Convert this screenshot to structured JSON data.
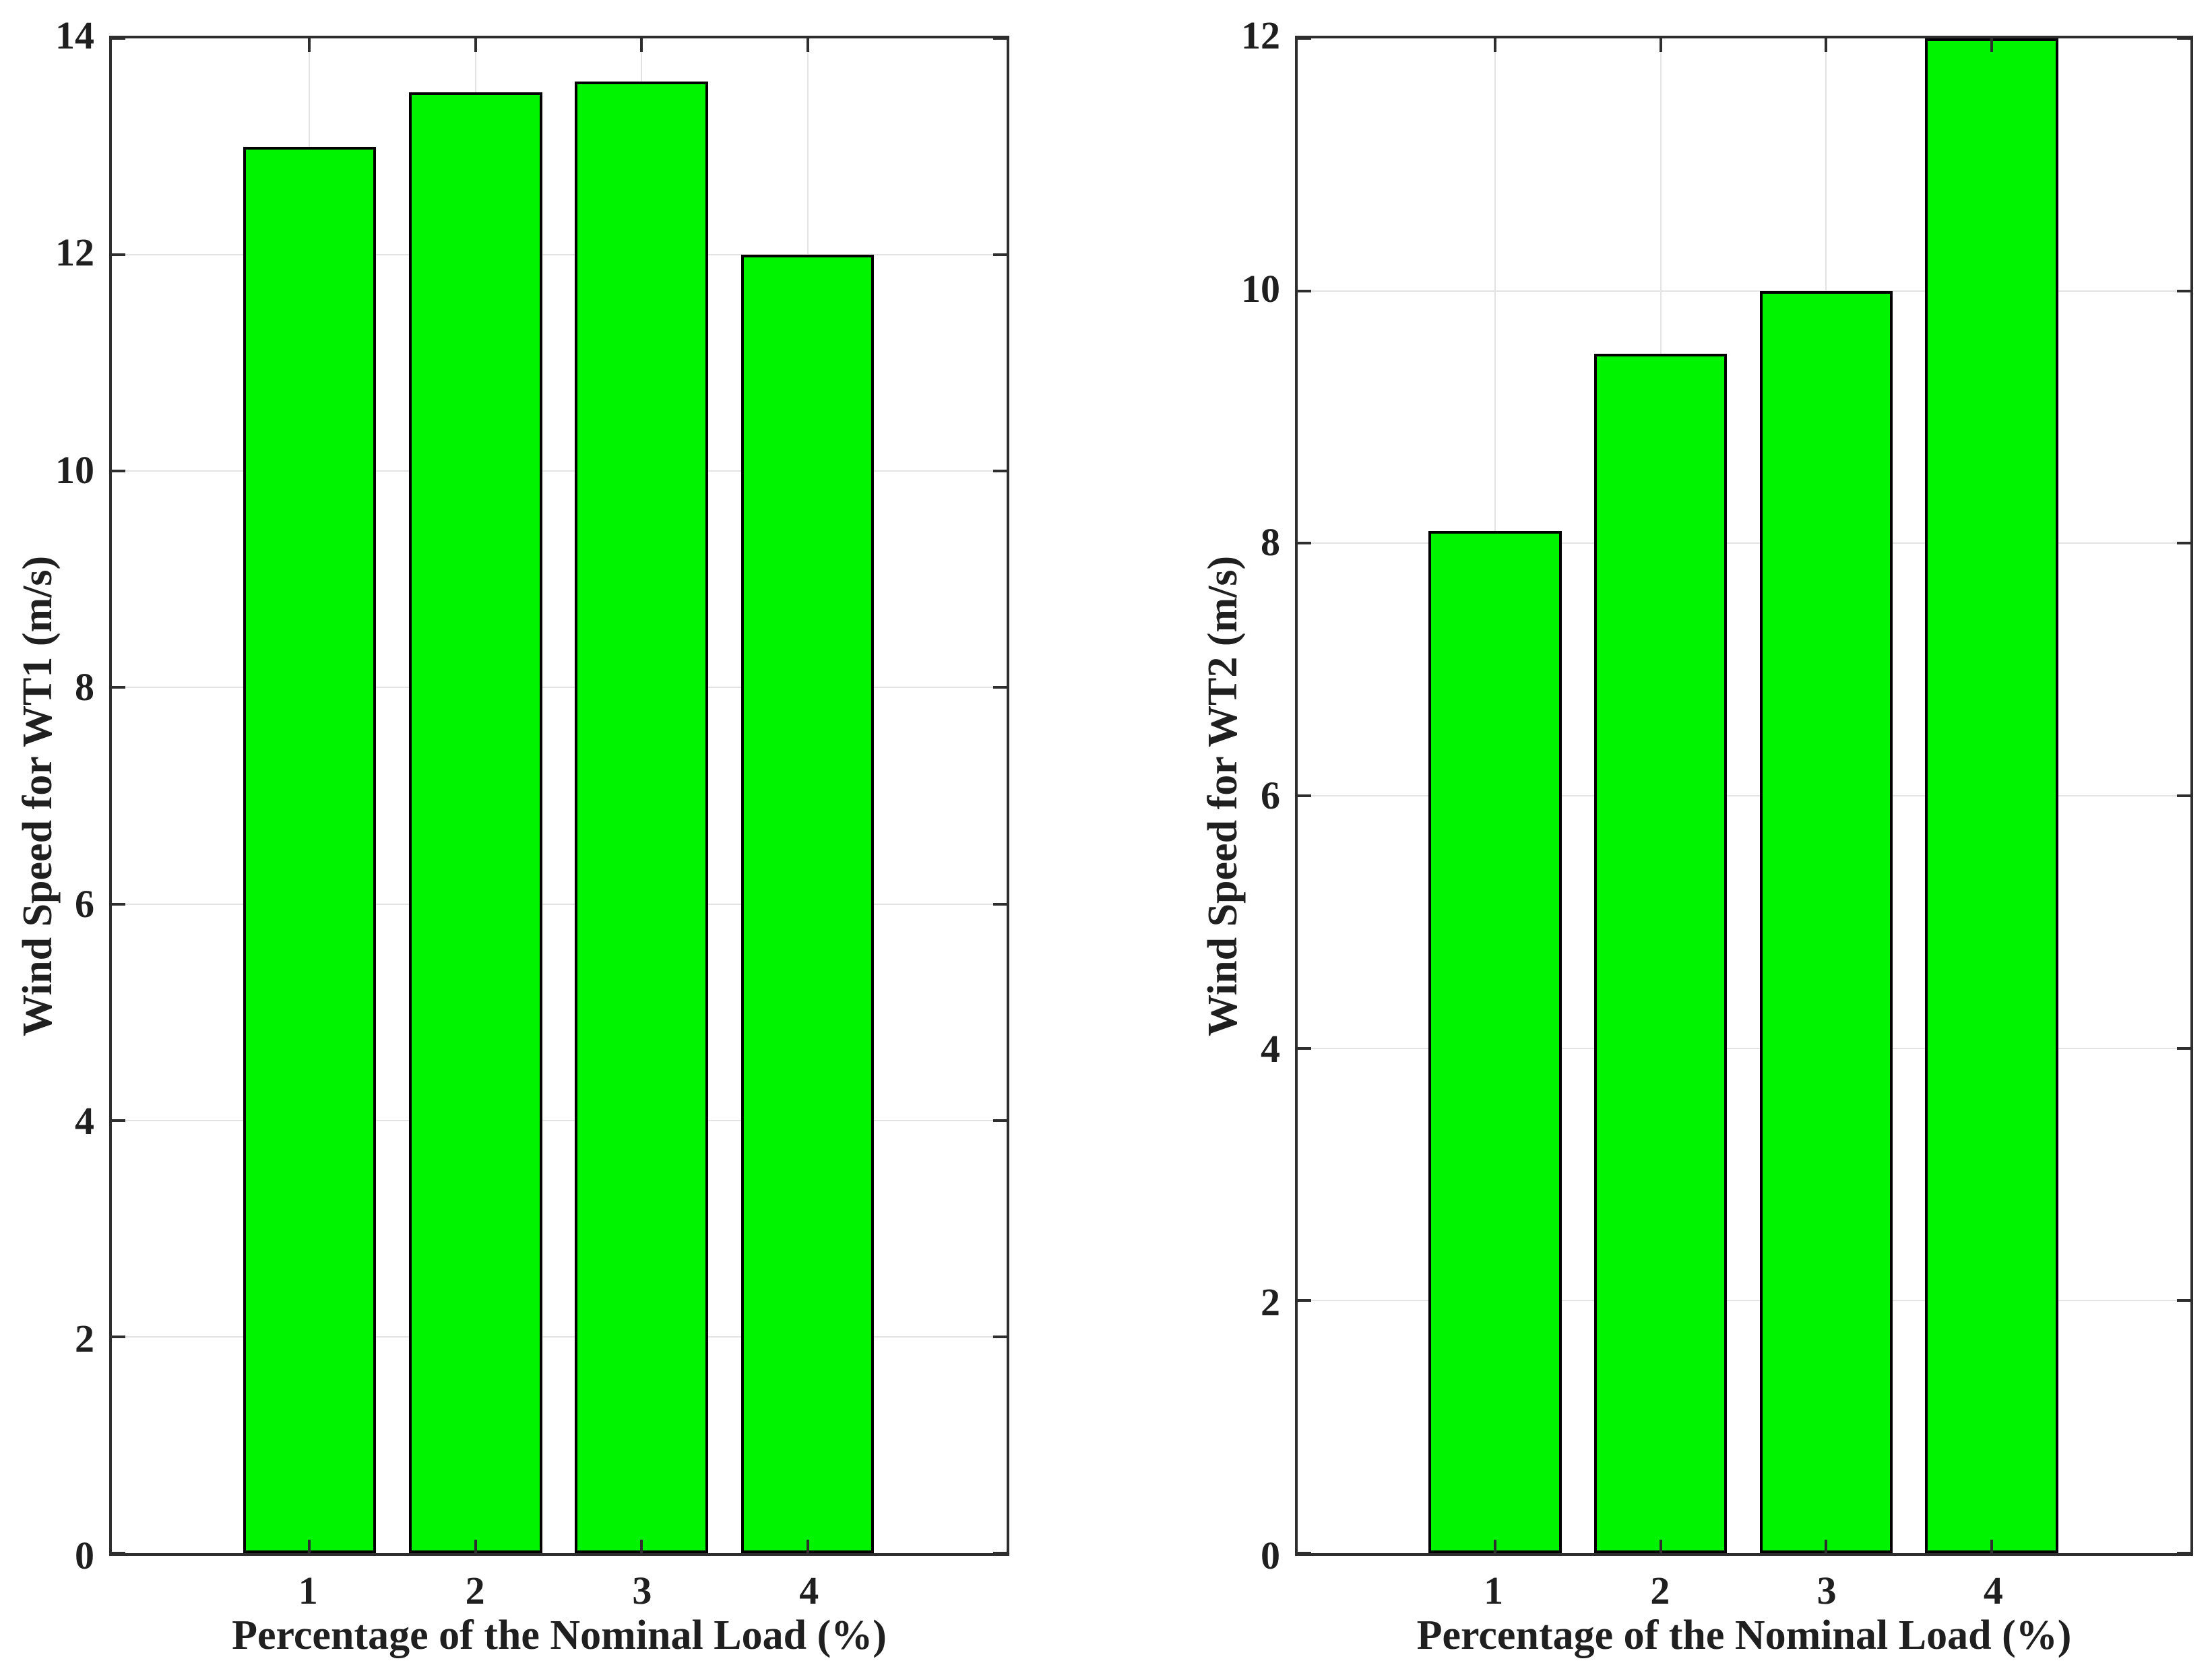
{
  "figure": {
    "background": "#ffffff",
    "text_color": "#1f1f1f",
    "axis_color": "#2e2e2e",
    "grid_color": "#e3e3e3"
  },
  "chart_data": [
    {
      "type": "bar",
      "title": "",
      "categories": [
        "1",
        "2",
        "3",
        "4"
      ],
      "values": [
        13,
        13.5,
        13.6,
        12
      ],
      "xlabel": "Percentage of the Nominal Load (%)",
      "ylabel": "Wind Speed for WT1 (m/s)",
      "ylim": [
        0,
        14
      ],
      "yticks": [
        0,
        2,
        4,
        6,
        8,
        10,
        12,
        14
      ],
      "grid": true,
      "legend": "none",
      "bar_color": "#00f400",
      "bar_edge_color": "#000000"
    },
    {
      "type": "bar",
      "title": "",
      "categories": [
        "1",
        "2",
        "3",
        "4"
      ],
      "values": [
        8.1,
        9.5,
        10,
        12
      ],
      "xlabel": "Percentage of the Nominal Load (%)",
      "ylabel": "Wind Speed for WT2 (m/s)",
      "ylim": [
        0,
        12
      ],
      "yticks": [
        0,
        2,
        4,
        6,
        8,
        10,
        12
      ],
      "grid": true,
      "legend": "none",
      "bar_color": "#00f400",
      "bar_edge_color": "#000000"
    }
  ]
}
